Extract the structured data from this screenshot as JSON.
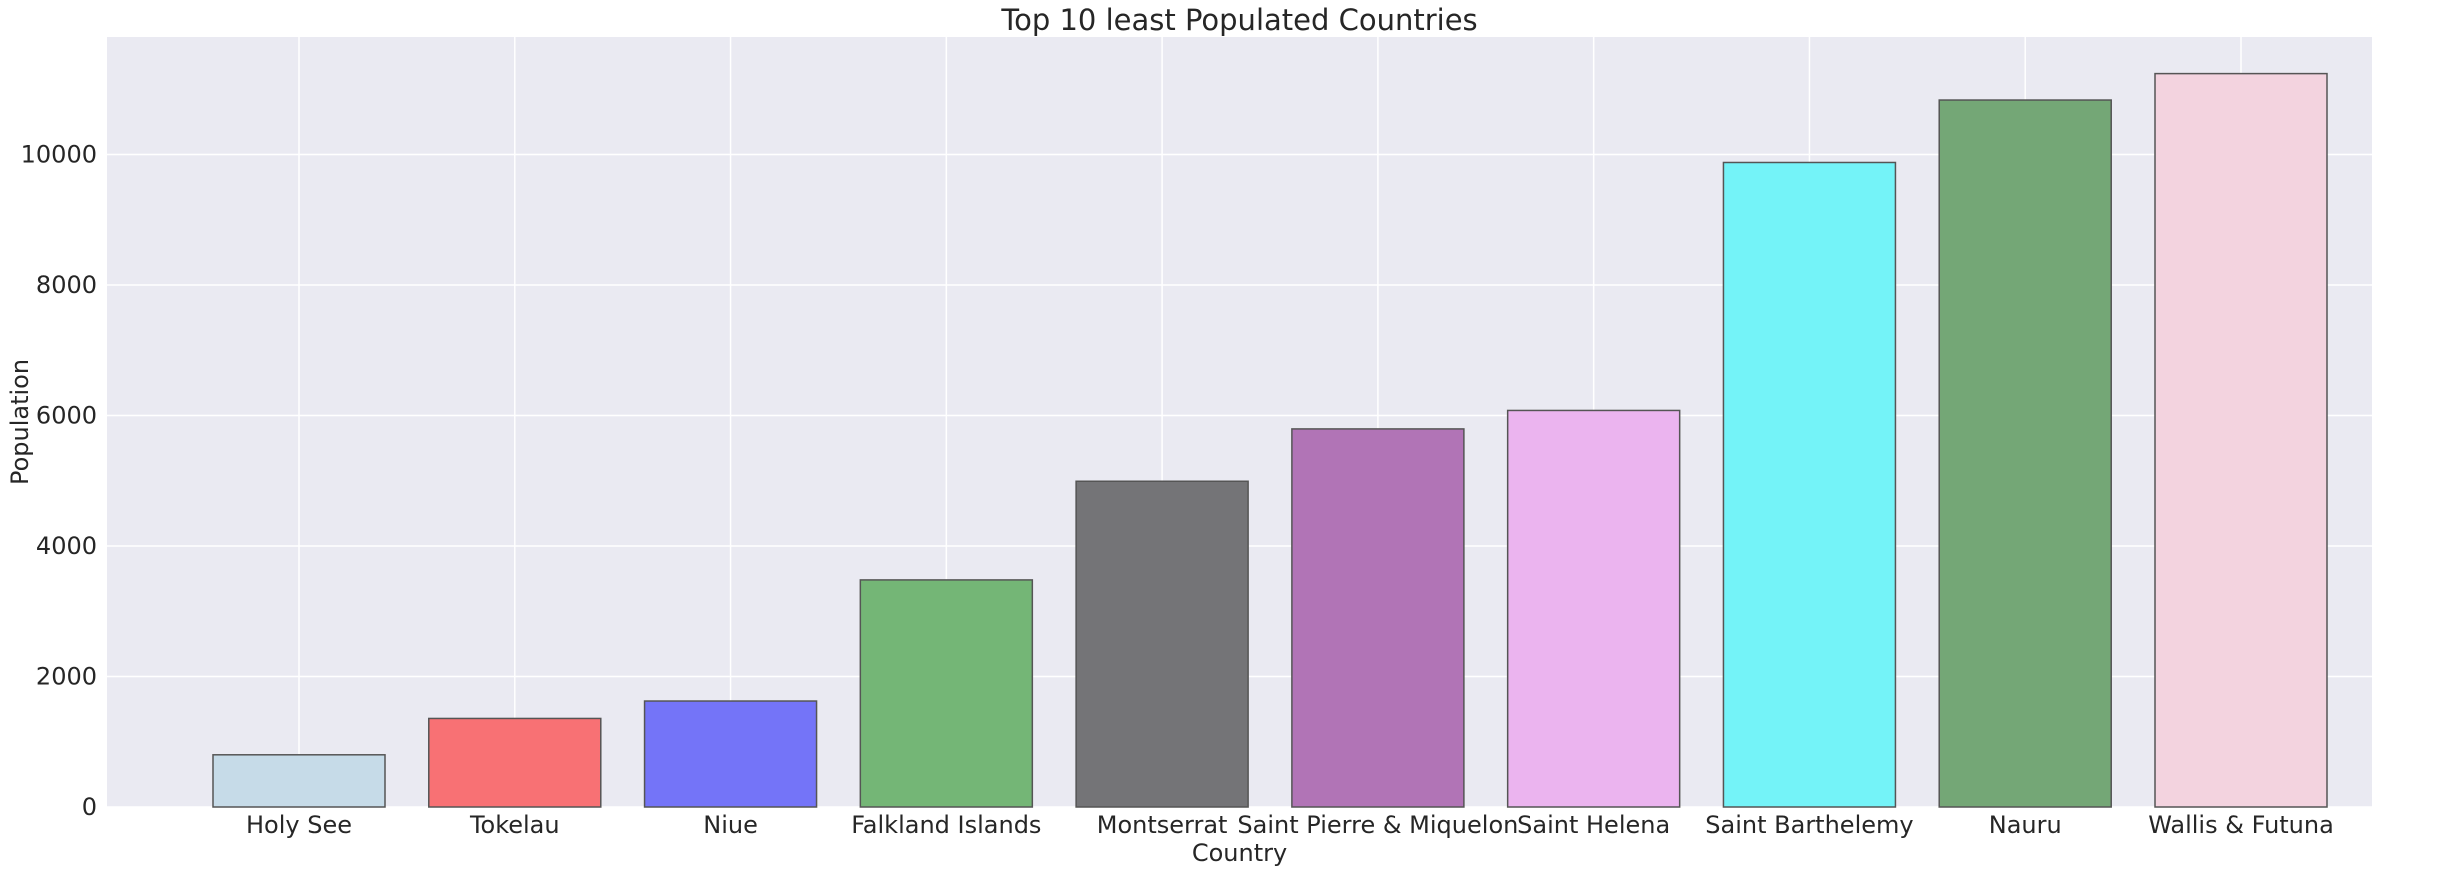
{
  "chart_data": {
    "type": "bar",
    "title": "Top 10 least Populated Countries",
    "xlabel": "Country",
    "ylabel": "Population",
    "categories": [
      "Holy See",
      "Tokelau",
      "Niue",
      "Falkland Islands",
      "Montserrat",
      "Saint Pierre & Miquelon",
      "Saint Helena",
      "Saint Barthelemy",
      "Nauru",
      "Wallis & Futuna"
    ],
    "values": [
      800,
      1357,
      1624,
      3480,
      4992,
      5794,
      6077,
      9877,
      10834,
      11239
    ],
    "colors": [
      "#c6dbe8",
      "#f87174",
      "#7474f8",
      "#74b676",
      "#747477",
      "#b174b6",
      "#ebb4ef",
      "#74f3f8",
      "#74a776",
      "#f3d3df"
    ],
    "ylim": [
      0,
      11800
    ],
    "yticks": [
      0,
      2000,
      4000,
      6000,
      8000,
      10000
    ],
    "grid": true,
    "background": "#eaeaf2",
    "grid_color": "#ffffff"
  }
}
